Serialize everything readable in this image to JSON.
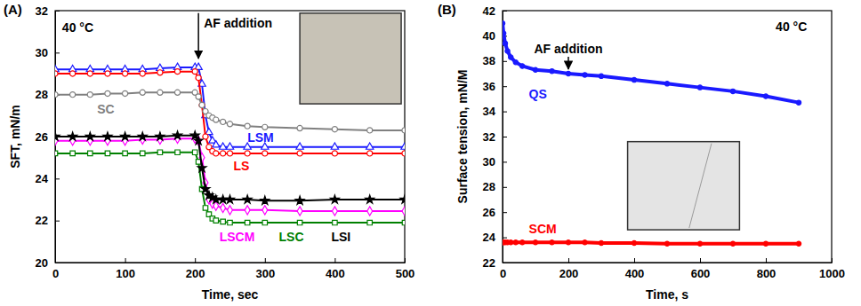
{
  "chart_data": [
    {
      "type": "line",
      "panel": "(A)",
      "x_label": "Time, sec",
      "y_label": "SFT, mN/m",
      "grid": false,
      "xlim": [
        0,
        500
      ],
      "xticks": [
        0,
        100,
        200,
        300,
        400,
        500
      ],
      "ylim": [
        20,
        32
      ],
      "yticks": [
        20,
        22,
        24,
        26,
        28,
        30,
        32
      ],
      "annotations": [
        {
          "text": "40 °C"
        },
        {
          "text": "AF addition",
          "x": 205
        }
      ],
      "x": [
        0,
        25,
        50,
        75,
        100,
        125,
        150,
        175,
        200,
        205,
        210,
        215,
        220,
        225,
        230,
        240,
        250,
        275,
        300,
        350,
        400,
        450,
        500
      ],
      "series": [
        {
          "name": "LSM",
          "color": "#1a1aff",
          "marker": "triangle-open",
          "values": [
            29.2,
            29.2,
            29.2,
            29.2,
            29.2,
            29.2,
            29.25,
            29.3,
            29.3,
            29.3,
            28.5,
            27.0,
            26.2,
            25.8,
            25.6,
            25.5,
            25.5,
            25.5,
            25.5,
            25.5,
            25.5,
            25.5,
            25.5
          ]
        },
        {
          "name": "LS",
          "color": "#ff0000",
          "marker": "circle-open",
          "values": [
            29.0,
            29.0,
            29.0,
            29.0,
            29.0,
            29.0,
            29.05,
            29.1,
            29.1,
            28.8,
            27.5,
            26.0,
            25.5,
            25.3,
            25.2,
            25.2,
            25.2,
            25.2,
            25.2,
            25.2,
            25.2,
            25.2,
            25.2
          ]
        },
        {
          "name": "SC",
          "color": "#808080",
          "marker": "circle-open",
          "values": [
            28.0,
            28.0,
            28.0,
            28.05,
            28.05,
            28.1,
            28.1,
            28.1,
            28.1,
            27.9,
            27.5,
            27.2,
            27.0,
            26.9,
            26.8,
            26.7,
            26.6,
            26.5,
            26.45,
            26.4,
            26.35,
            26.3,
            26.3
          ]
        },
        {
          "name": "LSCM",
          "color": "#ff00ff",
          "marker": "diamond-open",
          "values": [
            25.8,
            25.8,
            25.8,
            25.8,
            25.8,
            25.85,
            25.85,
            25.9,
            25.9,
            25.8,
            25.0,
            23.8,
            23.0,
            22.8,
            22.7,
            22.6,
            22.5,
            22.5,
            22.5,
            22.45,
            22.45,
            22.45,
            22.45
          ]
        },
        {
          "name": "LSC",
          "color": "#008000",
          "marker": "square-open",
          "values": [
            25.2,
            25.2,
            25.2,
            25.2,
            25.2,
            25.2,
            25.25,
            25.25,
            25.25,
            24.8,
            23.5,
            22.6,
            22.3,
            22.1,
            22.0,
            21.95,
            21.9,
            21.9,
            21.9,
            21.9,
            21.9,
            21.9,
            21.9
          ]
        },
        {
          "name": "LSI",
          "color": "#000000",
          "marker": "star",
          "values": [
            26.0,
            26.0,
            26.0,
            26.0,
            26.0,
            26.0,
            26.0,
            26.05,
            26.05,
            25.8,
            24.5,
            23.5,
            23.2,
            23.1,
            23.0,
            23.0,
            23.0,
            23.0,
            22.95,
            22.95,
            23.0,
            23.0,
            23.0
          ]
        }
      ]
    },
    {
      "type": "line",
      "panel": "(B)",
      "x_label": "Time, s",
      "y_label": "Surface tension, mN/M",
      "grid": false,
      "xlim": [
        0,
        1000
      ],
      "xticks": [
        0,
        200,
        400,
        600,
        800,
        1000
      ],
      "ylim": [
        22,
        42
      ],
      "yticks": [
        22,
        24,
        26,
        28,
        30,
        32,
        34,
        36,
        38,
        40,
        42
      ],
      "annotations": [
        {
          "text": "40 °C"
        },
        {
          "text": "AF addition",
          "x": 200
        }
      ],
      "x": [
        0,
        3,
        8,
        15,
        25,
        40,
        60,
        100,
        150,
        200,
        250,
        300,
        400,
        500,
        600,
        700,
        800,
        900
      ],
      "series": [
        {
          "name": "QS",
          "color": "#1a1aff",
          "marker": "circle",
          "values": [
            41.0,
            40.2,
            39.4,
            38.8,
            38.3,
            37.9,
            37.6,
            37.3,
            37.2,
            37.0,
            36.9,
            36.8,
            36.5,
            36.2,
            35.9,
            35.6,
            35.2,
            34.7
          ]
        },
        {
          "name": "SCM",
          "color": "#ff0000",
          "marker": "circle",
          "values": [
            23.6,
            23.6,
            23.6,
            23.6,
            23.6,
            23.6,
            23.6,
            23.6,
            23.6,
            23.6,
            23.6,
            23.55,
            23.55,
            23.5,
            23.5,
            23.5,
            23.5,
            23.5
          ]
        }
      ]
    }
  ]
}
